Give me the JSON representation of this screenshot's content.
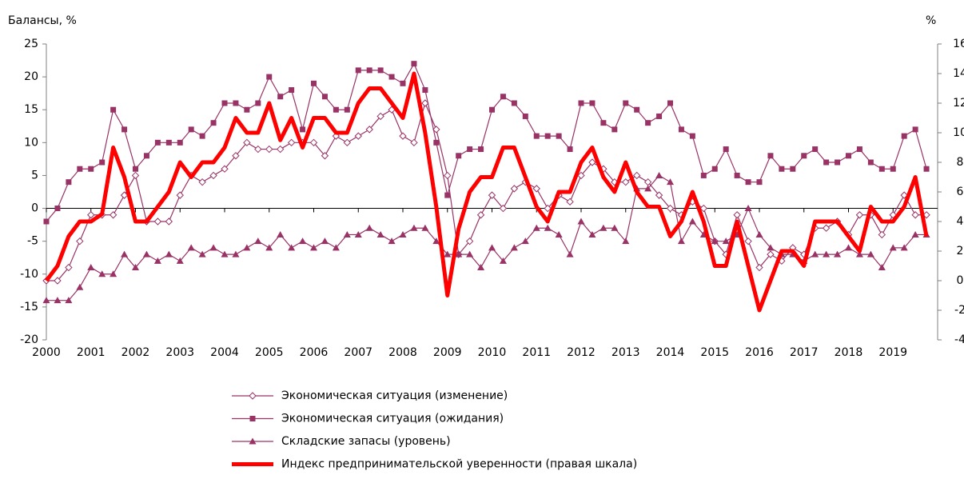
{
  "chart_data": {
    "type": "line",
    "ylabel": "Балансы, %",
    "y2label": "%",
    "x": [
      2000,
      2000.25,
      2000.5,
      2000.75,
      2001,
      2001.25,
      2001.5,
      2001.75,
      2002,
      2002.25,
      2002.5,
      2002.75,
      2003,
      2003.25,
      2003.5,
      2003.75,
      2004,
      2004.25,
      2004.5,
      2004.75,
      2005,
      2005.25,
      2005.5,
      2005.75,
      2006,
      2006.25,
      2006.5,
      2006.75,
      2007,
      2007.25,
      2007.5,
      2007.75,
      2008,
      2008.25,
      2008.5,
      2008.75,
      2009,
      2009.25,
      2009.5,
      2009.75,
      2010,
      2010.25,
      2010.5,
      2010.75,
      2011,
      2011.25,
      2011.5,
      2011.75,
      2012,
      2012.25,
      2012.5,
      2012.75,
      2013,
      2013.25,
      2013.5,
      2013.75,
      2014,
      2014.25,
      2014.5,
      2014.75,
      2015,
      2015.25,
      2015.5,
      2015.75,
      2016,
      2016.25,
      2016.5,
      2016.75,
      2017,
      2017.25,
      2017.5,
      2017.75,
      2018,
      2018.25,
      2018.5,
      2018.75,
      2019,
      2019.25,
      2019.5,
      2019.75
    ],
    "xlim": [
      2000,
      2020
    ],
    "xticks": [
      2000,
      2001,
      2002,
      2003,
      2004,
      2005,
      2006,
      2007,
      2008,
      2009,
      2010,
      2011,
      2012,
      2013,
      2014,
      2015,
      2016,
      2017,
      2018,
      2019
    ],
    "ylim": [
      -20,
      25
    ],
    "yticks": [
      -20,
      -15,
      -10,
      -5,
      0,
      5,
      10,
      15,
      20,
      25
    ],
    "y2lim": [
      -4,
      16
    ],
    "y2ticks": [
      -4,
      -2,
      0,
      2,
      4,
      6,
      8,
      10,
      12,
      14,
      16
    ],
    "series": [
      {
        "name": "Экономическая ситуация (изменение)",
        "color": "#993366",
        "marker": "diamond",
        "values": [
          -11,
          -11,
          -9,
          -5,
          -1,
          -1,
          -1,
          2,
          5,
          -2,
          -2,
          -2,
          2,
          5,
          4,
          5,
          6,
          8,
          10,
          9,
          9,
          9,
          10,
          10,
          10,
          8,
          11,
          10,
          11,
          12,
          14,
          15,
          11,
          10,
          16,
          12,
          5,
          -7,
          -5,
          -1,
          2,
          0,
          3,
          4,
          3,
          0,
          2,
          1,
          5,
          7,
          6,
          4,
          4,
          5,
          4,
          2,
          0,
          -1,
          1,
          0,
          -5,
          -7,
          -1,
          -5,
          -9,
          -7,
          -8,
          -6,
          -7,
          -3,
          -3,
          -2,
          -4,
          -1,
          -1,
          -4,
          -1,
          2,
          -1,
          -1
        ]
      },
      {
        "name": "Экономическая ситуация (ожидания)",
        "color": "#993366",
        "marker": "square",
        "values": [
          -2,
          0,
          4,
          6,
          6,
          7,
          15,
          12,
          6,
          8,
          10,
          10,
          10,
          12,
          11,
          13,
          16,
          16,
          15,
          16,
          20,
          17,
          18,
          12,
          19,
          17,
          15,
          15,
          21,
          21,
          21,
          20,
          19,
          22,
          18,
          10,
          2,
          8,
          9,
          9,
          15,
          17,
          16,
          14,
          11,
          11,
          11,
          9,
          16,
          16,
          13,
          12,
          16,
          15,
          13,
          14,
          16,
          12,
          11,
          5,
          6,
          9,
          5,
          4,
          4,
          8,
          6,
          6,
          8,
          9,
          7,
          7,
          8,
          9,
          7,
          6,
          6,
          11,
          12,
          6
        ]
      },
      {
        "name": "Складские запасы (уровень)",
        "color": "#993366",
        "marker": "triangle",
        "values": [
          -14,
          -14,
          -14,
          -12,
          -9,
          -10,
          -10,
          -7,
          -9,
          -7,
          -8,
          -7,
          -8,
          -6,
          -7,
          -6,
          -7,
          -7,
          -6,
          -5,
          -6,
          -4,
          -6,
          -5,
          -6,
          -5,
          -6,
          -4,
          -4,
          -3,
          -4,
          -5,
          -4,
          -3,
          -3,
          -5,
          -7,
          -7,
          -7,
          -9,
          -6,
          -8,
          -6,
          -5,
          -3,
          -3,
          -4,
          -7,
          -2,
          -4,
          -3,
          -3,
          -5,
          3,
          3,
          5,
          4,
          -5,
          -2,
          -4,
          -5,
          -5,
          -4,
          0,
          -4,
          -6,
          -7,
          -7,
          -8,
          -7,
          -7,
          -7,
          -6,
          -7,
          -7,
          -9,
          -6,
          -6,
          -4,
          -4
        ]
      },
      {
        "name": "Индекс предпринимательской уверенности (правая шкала)",
        "color": "#ff0000",
        "axis": "y2",
        "values": [
          0,
          1,
          3,
          4,
          4,
          4.5,
          9,
          7,
          4,
          4,
          5,
          6,
          8,
          7,
          8,
          8,
          9,
          11,
          10,
          10,
          12,
          9.5,
          11,
          9,
          11,
          11,
          10,
          10,
          12,
          13,
          13,
          12,
          11,
          14,
          10,
          5,
          -1,
          3.5,
          6,
          7,
          7,
          9,
          9,
          7,
          5,
          4,
          6,
          6,
          8,
          9,
          7,
          6,
          8,
          6,
          5,
          5,
          3,
          4,
          6,
          4,
          1,
          1,
          4,
          1,
          -2,
          0,
          2,
          2,
          1,
          4,
          4,
          4,
          3,
          2,
          5,
          4,
          4,
          5,
          7,
          3
        ]
      }
    ]
  }
}
